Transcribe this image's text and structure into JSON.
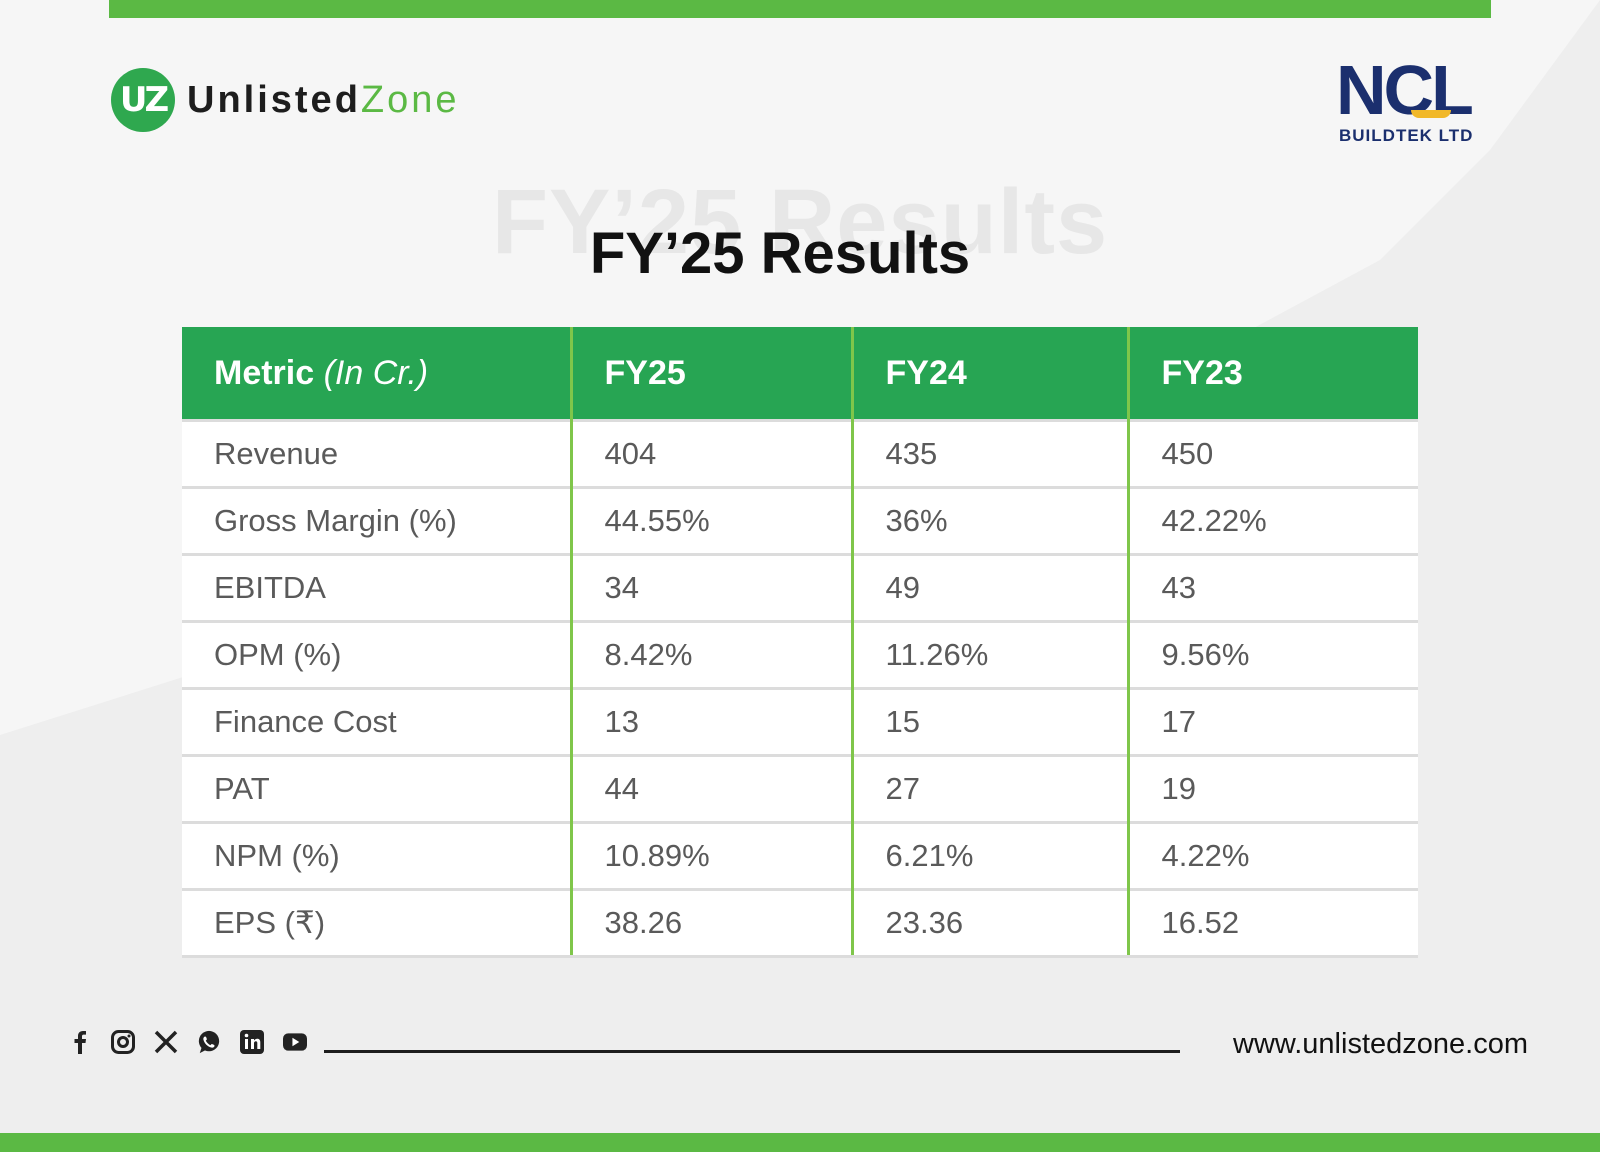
{
  "brand": {
    "left_logo_mark": "UZ",
    "left_logo_word1": "Unlisted",
    "left_logo_word2": "Zone",
    "right_logo_main": "NCL",
    "right_logo_sub": "BUILDTEK LTD"
  },
  "title": "FY’25 Results",
  "title_ghost": "FY’25 Results",
  "table": {
    "header": {
      "metric": "Metric",
      "metric_unit": "(In Cr.)",
      "col1": "FY25",
      "col2": "FY24",
      "col3": "FY23"
    },
    "rows": [
      {
        "metric": "Revenue",
        "fy25": "404",
        "fy24": "435",
        "fy23": "450"
      },
      {
        "metric": "Gross Margin (%)",
        "fy25": "44.55%",
        "fy24": "36%",
        "fy23": "42.22%"
      },
      {
        "metric": "EBITDA",
        "fy25": "34",
        "fy24": "49",
        "fy23": "43"
      },
      {
        "metric": "OPM (%)",
        "fy25": "8.42%",
        "fy24": "11.26%",
        "fy23": "9.56%"
      },
      {
        "metric": "Finance Cost",
        "fy25": "13",
        "fy24": "15",
        "fy23": "17"
      },
      {
        "metric": "PAT",
        "fy25": "44",
        "fy24": "27",
        "fy23": "19"
      },
      {
        "metric": "NPM (%)",
        "fy25": "10.89%",
        "fy24": "6.21%",
        "fy23": "4.22%"
      },
      {
        "metric": "EPS (₹)",
        "fy25": "38.26",
        "fy24": "23.36",
        "fy23": "16.52"
      }
    ]
  },
  "footer": {
    "social_icons": [
      "facebook-icon",
      "instagram-icon",
      "x-icon",
      "whatsapp-icon",
      "linkedin-icon",
      "youtube-icon"
    ],
    "url": "www.unlistedzone.com"
  },
  "colors": {
    "accent_green": "#5bb944",
    "header_green": "#27a553",
    "ncl_navy": "#1b2f6e",
    "ncl_yellow": "#f1b829"
  }
}
